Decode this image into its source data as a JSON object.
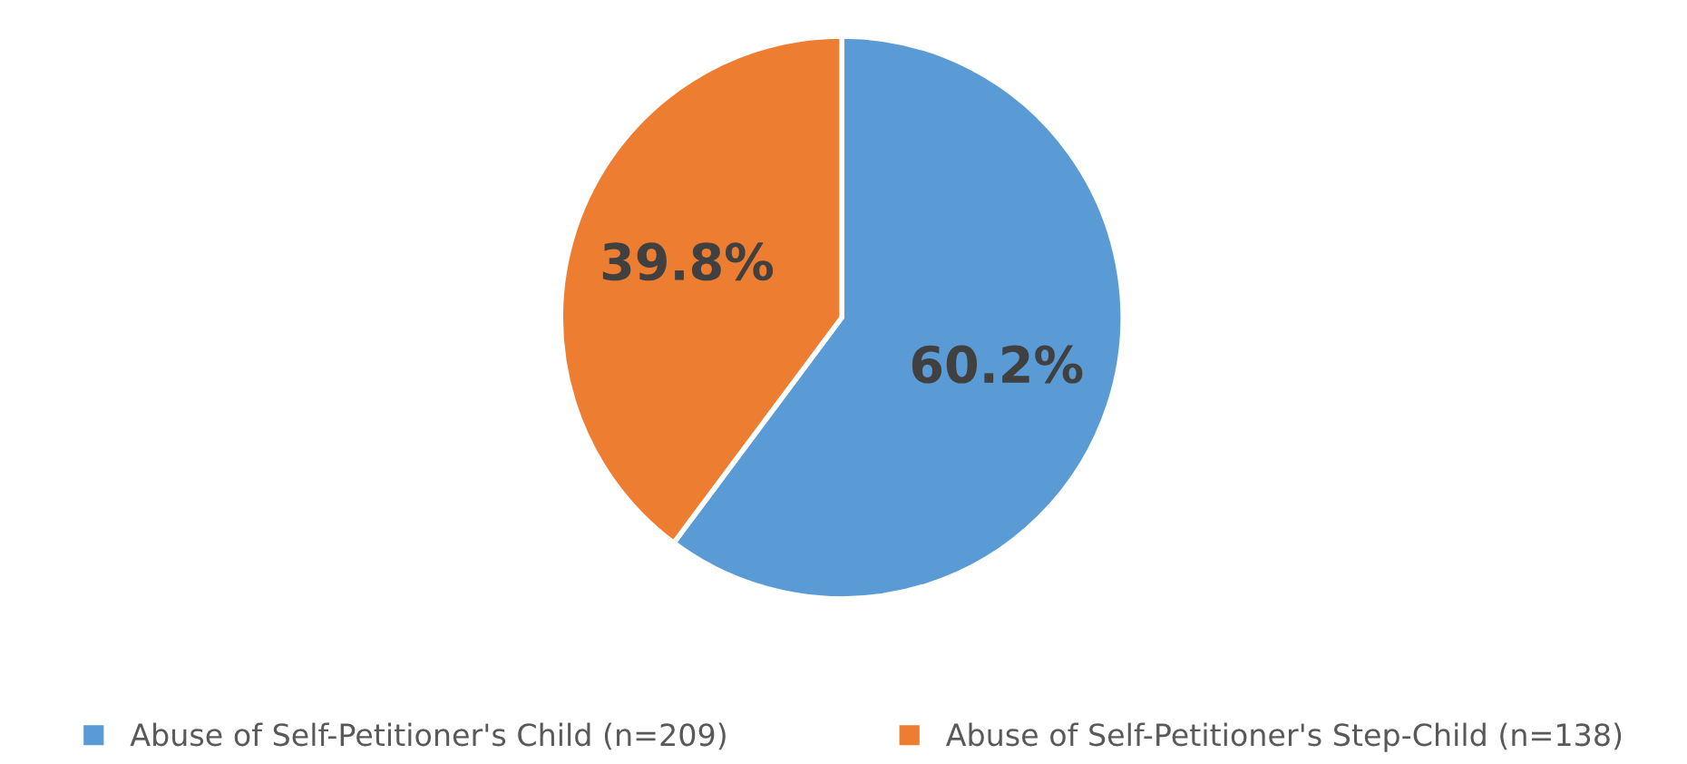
{
  "chart_data": {
    "type": "pie",
    "categories": [
      "Abuse of Self-Petitioner's Child (n=209)",
      "Abuse of Self-Petitioner's Step-Child (n=138)"
    ],
    "values": [
      60.2,
      39.8
    ],
    "colors": [
      "#5b9bd5",
      "#ed7d31"
    ],
    "value_labels": [
      "60.2%",
      "39.8%"
    ],
    "legend": "bottom"
  }
}
